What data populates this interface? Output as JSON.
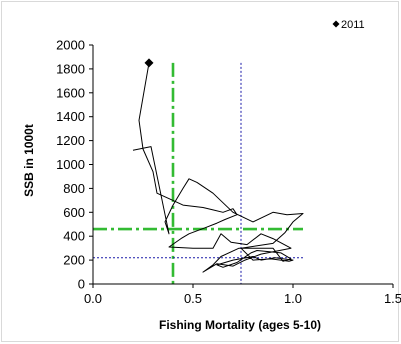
{
  "chart_data": {
    "type": "line",
    "xlabel": "Fishing Mortality (ages 5-10)",
    "ylabel": "SSB in 1000t",
    "xlim": [
      0,
      1.5
    ],
    "ylim": [
      0,
      2000
    ],
    "xticks": [
      "0.0",
      "0.5",
      "1.0",
      "1.5"
    ],
    "yticks": [
      "0",
      "200",
      "400",
      "600",
      "800",
      "1000",
      "1200",
      "1400",
      "1600",
      "1800",
      "2000"
    ],
    "x_tick_values": [
      0,
      0.5,
      1.0,
      1.5
    ],
    "y_tick_values": [
      0,
      200,
      400,
      600,
      800,
      1000,
      1200,
      1400,
      1600,
      1800,
      2000
    ],
    "legend": {
      "label": "2011",
      "marker": "diamond",
      "placement": "top-right"
    },
    "highlight_point": {
      "label": "2011",
      "x": 0.28,
      "y": 1850
    },
    "series": [
      {
        "color": "#000000",
        "points": [
          [
            0.28,
            1850
          ],
          [
            0.23,
            1370
          ],
          [
            0.25,
            1130
          ],
          [
            0.3,
            940
          ],
          [
            0.32,
            760
          ],
          [
            0.4,
            700
          ],
          [
            0.45,
            660
          ],
          [
            0.55,
            640
          ],
          [
            0.6,
            620
          ],
          [
            0.65,
            600
          ],
          [
            0.7,
            630
          ],
          [
            0.72,
            580
          ],
          [
            0.66,
            540
          ],
          [
            0.62,
            510
          ],
          [
            0.56,
            470
          ],
          [
            0.48,
            420
          ],
          [
            0.44,
            380
          ],
          [
            0.38,
            310
          ],
          [
            0.5,
            300
          ],
          [
            0.6,
            300
          ],
          [
            0.64,
            420
          ],
          [
            0.69,
            350
          ],
          [
            0.77,
            330
          ],
          [
            0.84,
            420
          ],
          [
            0.9,
            380
          ],
          [
            0.99,
            300
          ],
          [
            0.84,
            250
          ],
          [
            0.76,
            200
          ],
          [
            0.7,
            150
          ],
          [
            0.62,
            170
          ],
          [
            0.55,
            100
          ],
          [
            0.6,
            160
          ],
          [
            0.64,
            230
          ],
          [
            0.73,
            300
          ],
          [
            0.9,
            300
          ],
          [
            0.95,
            190
          ],
          [
            0.99,
            210
          ],
          [
            0.94,
            260
          ],
          [
            0.82,
            280
          ],
          [
            0.79,
            260
          ],
          [
            0.72,
            180
          ],
          [
            0.65,
            140
          ],
          [
            0.62,
            160
          ],
          [
            0.7,
            200
          ],
          [
            0.8,
            230
          ],
          [
            0.84,
            200
          ],
          [
            0.91,
            220
          ],
          [
            1.0,
            200
          ],
          [
            0.98,
            190
          ],
          [
            0.89,
            210
          ],
          [
            0.8,
            200
          ],
          [
            0.74,
            300
          ],
          [
            0.9,
            340
          ],
          [
            0.96,
            430
          ],
          [
            1.0,
            520
          ],
          [
            1.05,
            590
          ],
          [
            0.97,
            580
          ],
          [
            0.9,
            600
          ],
          [
            0.8,
            520
          ],
          [
            0.7,
            600
          ],
          [
            0.6,
            760
          ],
          [
            0.52,
            850
          ],
          [
            0.48,
            880
          ],
          [
            0.45,
            800
          ],
          [
            0.4,
            660
          ],
          [
            0.36,
            520
          ],
          [
            0.38,
            420
          ],
          [
            0.29,
            1150
          ],
          [
            0.2,
            1120
          ]
        ]
      }
    ],
    "reference_lines": [
      {
        "orientation": "vertical",
        "value": 0.4,
        "style": "dash-dot",
        "color": "#33bb33"
      },
      {
        "orientation": "horizontal",
        "value": 460,
        "style": "dash-dot",
        "color": "#33bb33"
      },
      {
        "orientation": "vertical",
        "value": 0.74,
        "style": "dotted",
        "color": "#1a1aa8"
      },
      {
        "orientation": "horizontal",
        "value": 220,
        "style": "dotted",
        "color": "#1a1aa8"
      }
    ]
  }
}
